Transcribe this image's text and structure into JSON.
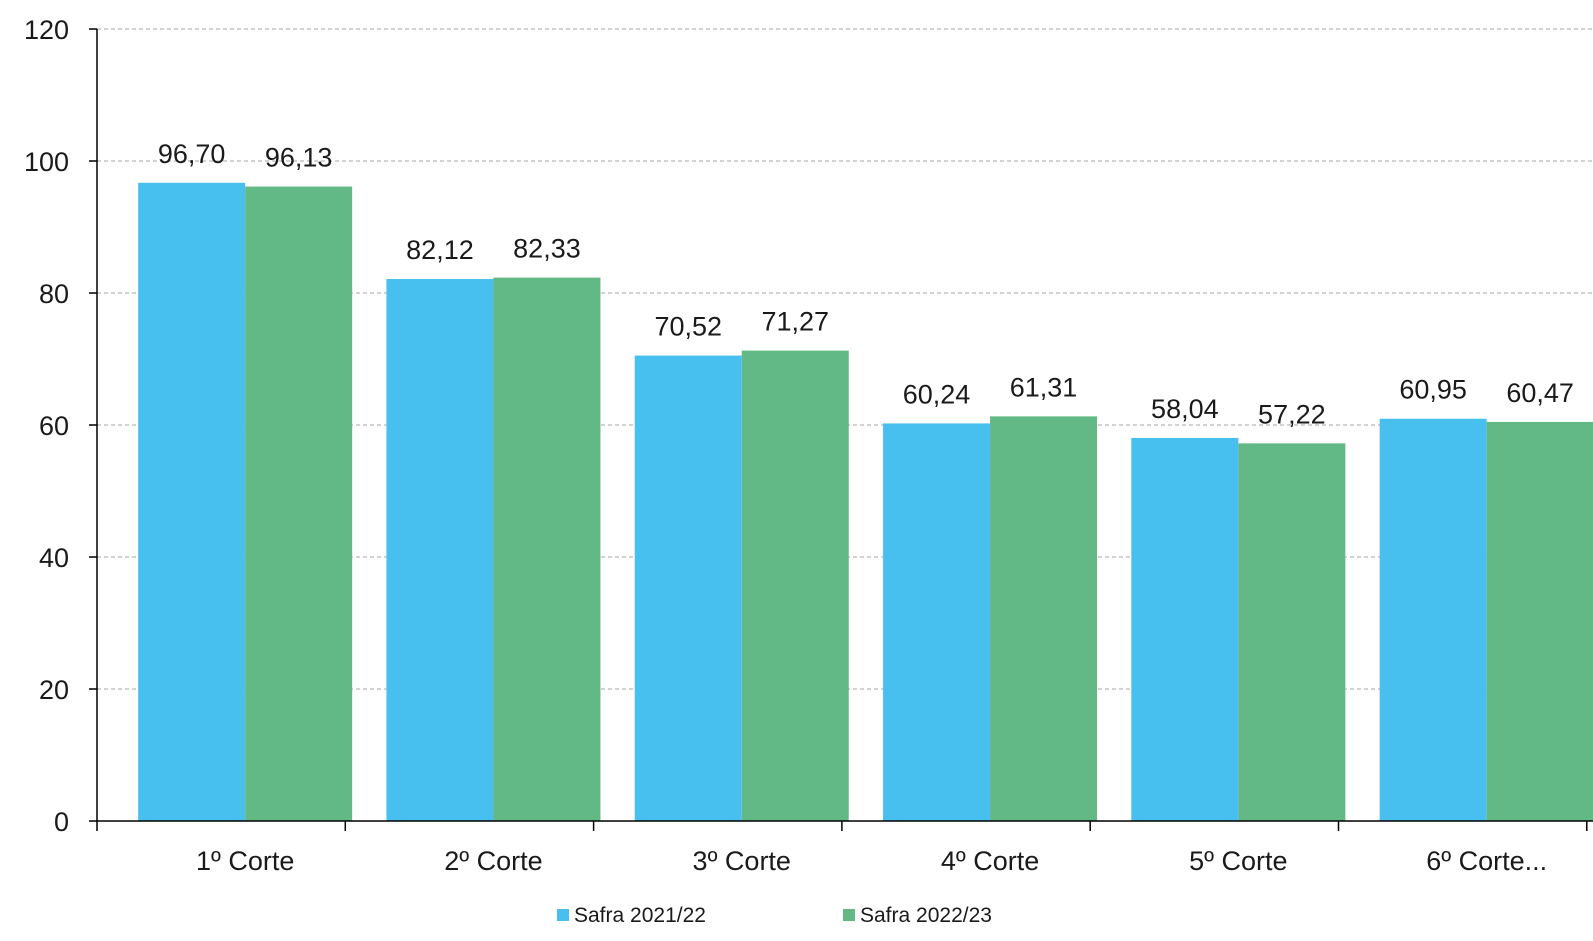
{
  "chart_data": {
    "type": "bar",
    "title": "",
    "xlabel": "",
    "ylabel": "",
    "ylim": [
      0,
      120
    ],
    "yticks": [
      0,
      20,
      40,
      60,
      80,
      100,
      120
    ],
    "grid": true,
    "legend_position": "bottom",
    "categories": [
      "1º Corte",
      "2º Corte",
      "3º Corte",
      "4º Corte",
      "5º Corte",
      "6º Corte..."
    ],
    "series": [
      {
        "name": "Safra 2021/22",
        "color": "#47C0EF",
        "values": [
          96.7,
          82.12,
          70.52,
          60.24,
          58.04,
          60.95
        ],
        "labels": [
          "96,70",
          "82,12",
          "70,52",
          "60,24",
          "58,04",
          "60,95"
        ]
      },
      {
        "name": "Safra 2022/23",
        "color": "#63B986",
        "values": [
          96.13,
          82.33,
          71.27,
          61.31,
          57.22,
          60.47
        ],
        "labels": [
          "96,13",
          "82,33",
          "71,27",
          "61,31",
          "57,22",
          "60,47"
        ]
      }
    ]
  }
}
